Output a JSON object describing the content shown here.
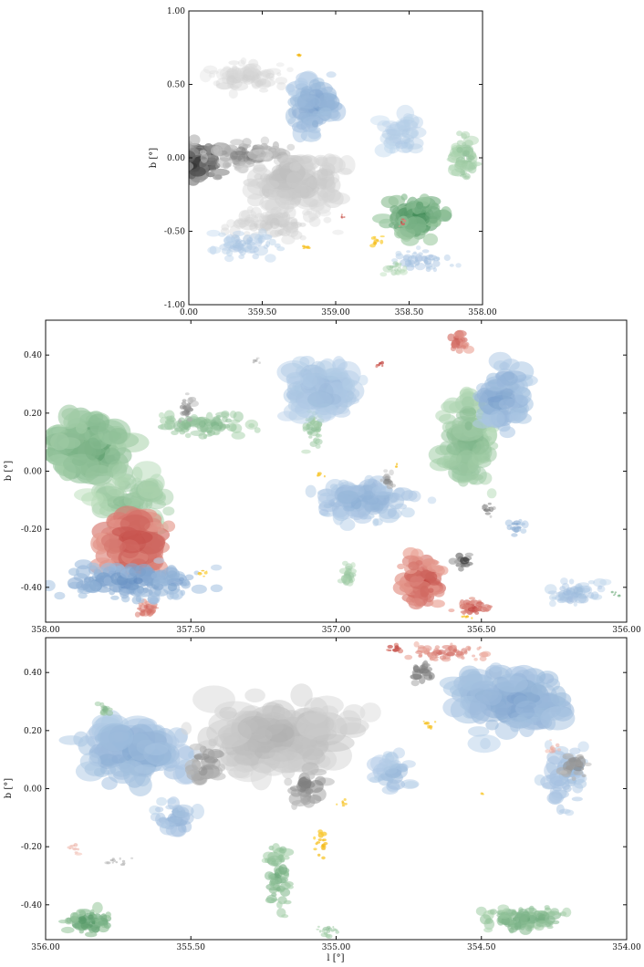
{
  "chart_data": [
    {
      "type": "heatmap",
      "panel": "top",
      "xlabel": "",
      "ylabel": "b [°]",
      "xlim": [
        0.0,
        358.0
      ],
      "ylim": [
        -1.0,
        1.0
      ],
      "x_ticks": [
        "0.00",
        "359.50",
        "359.00",
        "358.50",
        "358.00"
      ],
      "y_ticks": [
        "1.00",
        "0.50",
        "0.00",
        "-0.50",
        "-1.00"
      ],
      "colormaps": [
        "grey",
        "blue",
        "green",
        "red",
        "yellow"
      ],
      "regions": [
        {
          "cmap": "grey",
          "l": 359.95,
          "b": -0.03,
          "dl": 0.22,
          "db": 0.16,
          "intensity": 0.95,
          "n": 120
        },
        {
          "cmap": "grey",
          "l": 359.6,
          "b": 0.02,
          "dl": 0.35,
          "db": 0.12,
          "intensity": 0.55,
          "n": 90
        },
        {
          "cmap": "grey",
          "l": 359.3,
          "b": -0.15,
          "dl": 0.45,
          "db": 0.25,
          "intensity": 0.25,
          "n": 140
        },
        {
          "cmap": "grey",
          "l": 359.6,
          "b": 0.55,
          "dl": 0.35,
          "db": 0.15,
          "intensity": 0.15,
          "n": 70
        },
        {
          "cmap": "grey",
          "l": 359.4,
          "b": -0.45,
          "dl": 0.5,
          "db": 0.15,
          "intensity": 0.18,
          "n": 80
        },
        {
          "cmap": "blue",
          "l": 359.15,
          "b": 0.35,
          "dl": 0.2,
          "db": 0.25,
          "intensity": 0.45,
          "n": 90
        },
        {
          "cmap": "blue",
          "l": 359.6,
          "b": -0.6,
          "dl": 0.3,
          "db": 0.12,
          "intensity": 0.25,
          "n": 50
        },
        {
          "cmap": "blue",
          "l": 358.4,
          "b": -0.7,
          "dl": 0.3,
          "db": 0.1,
          "intensity": 0.3,
          "n": 40
        },
        {
          "cmap": "blue",
          "l": 358.55,
          "b": 0.15,
          "dl": 0.2,
          "db": 0.2,
          "intensity": 0.2,
          "n": 40
        },
        {
          "cmap": "green",
          "l": 358.45,
          "b": -0.4,
          "dl": 0.25,
          "db": 0.18,
          "intensity": 0.75,
          "n": 100
        },
        {
          "cmap": "green",
          "l": 358.12,
          "b": 0.0,
          "dl": 0.12,
          "db": 0.22,
          "intensity": 0.4,
          "n": 60
        },
        {
          "cmap": "green",
          "l": 358.6,
          "b": -0.75,
          "dl": 0.12,
          "db": 0.08,
          "intensity": 0.3,
          "n": 20
        },
        {
          "cmap": "red",
          "l": 358.55,
          "b": -0.44,
          "dl": 0.03,
          "db": 0.04,
          "intensity": 0.9,
          "n": 10
        },
        {
          "cmap": "red",
          "l": 358.95,
          "b": -0.4,
          "dl": 0.02,
          "db": 0.02,
          "intensity": 0.9,
          "n": 4
        },
        {
          "cmap": "yellow",
          "l": 358.72,
          "b": -0.57,
          "dl": 0.06,
          "db": 0.05,
          "intensity": 0.85,
          "n": 10
        },
        {
          "cmap": "yellow",
          "l": 359.2,
          "b": -0.6,
          "dl": 0.05,
          "db": 0.04,
          "intensity": 0.85,
          "n": 8
        },
        {
          "cmap": "yellow",
          "l": 359.25,
          "b": 0.7,
          "dl": 0.02,
          "db": 0.03,
          "intensity": 0.9,
          "n": 4
        }
      ]
    },
    {
      "type": "heatmap",
      "panel": "middle",
      "xlabel": "",
      "ylabel": "b [°]",
      "xlim": [
        358.0,
        356.0
      ],
      "ylim": [
        -0.52,
        0.52
      ],
      "x_ticks": [
        "358.00",
        "357.50",
        "357.00",
        "356.50",
        "356.00"
      ],
      "y_ticks": [
        "0.40",
        "0.20",
        "0.00",
        "-0.20",
        "-0.40"
      ],
      "regions": [
        {
          "cmap": "green",
          "l": 357.85,
          "b": 0.08,
          "dl": 0.18,
          "db": 0.15,
          "intensity": 0.6,
          "n": 140
        },
        {
          "cmap": "green",
          "l": 357.45,
          "b": 0.16,
          "dl": 0.25,
          "db": 0.06,
          "intensity": 0.45,
          "n": 90
        },
        {
          "cmap": "green",
          "l": 357.7,
          "b": -0.1,
          "dl": 0.18,
          "db": 0.12,
          "intensity": 0.4,
          "n": 70
        },
        {
          "cmap": "green",
          "l": 356.55,
          "b": 0.1,
          "dl": 0.12,
          "db": 0.22,
          "intensity": 0.45,
          "n": 120
        },
        {
          "cmap": "green",
          "l": 357.08,
          "b": 0.15,
          "dl": 0.05,
          "db": 0.1,
          "intensity": 0.4,
          "n": 40
        },
        {
          "cmap": "green",
          "l": 356.96,
          "b": -0.36,
          "dl": 0.05,
          "db": 0.06,
          "intensity": 0.35,
          "n": 25
        },
        {
          "cmap": "green",
          "l": 356.03,
          "b": -0.42,
          "dl": 0.03,
          "db": 0.02,
          "intensity": 0.8,
          "n": 6
        },
        {
          "cmap": "red",
          "l": 357.7,
          "b": -0.25,
          "dl": 0.14,
          "db": 0.15,
          "intensity": 0.75,
          "n": 150
        },
        {
          "cmap": "red",
          "l": 357.65,
          "b": -0.48,
          "dl": 0.06,
          "db": 0.04,
          "intensity": 0.65,
          "n": 40
        },
        {
          "cmap": "red",
          "l": 356.7,
          "b": -0.38,
          "dl": 0.09,
          "db": 0.12,
          "intensity": 0.75,
          "n": 110
        },
        {
          "cmap": "red",
          "l": 356.53,
          "b": -0.47,
          "dl": 0.08,
          "db": 0.04,
          "intensity": 0.75,
          "n": 50
        },
        {
          "cmap": "red",
          "l": 356.58,
          "b": 0.45,
          "dl": 0.05,
          "db": 0.05,
          "intensity": 0.7,
          "n": 30
        },
        {
          "cmap": "red",
          "l": 356.85,
          "b": 0.37,
          "dl": 0.02,
          "db": 0.02,
          "intensity": 0.95,
          "n": 6
        },
        {
          "cmap": "blue",
          "l": 357.7,
          "b": -0.38,
          "dl": 0.35,
          "db": 0.08,
          "intensity": 0.55,
          "n": 140
        },
        {
          "cmap": "blue",
          "l": 357.05,
          "b": 0.28,
          "dl": 0.18,
          "db": 0.14,
          "intensity": 0.3,
          "n": 100
        },
        {
          "cmap": "blue",
          "l": 356.9,
          "b": -0.1,
          "dl": 0.25,
          "db": 0.1,
          "intensity": 0.35,
          "n": 110
        },
        {
          "cmap": "blue",
          "l": 356.43,
          "b": 0.25,
          "dl": 0.12,
          "db": 0.15,
          "intensity": 0.45,
          "n": 80
        },
        {
          "cmap": "blue",
          "l": 356.18,
          "b": -0.42,
          "dl": 0.12,
          "db": 0.06,
          "intensity": 0.3,
          "n": 50
        },
        {
          "cmap": "blue",
          "l": 356.38,
          "b": -0.19,
          "dl": 0.04,
          "db": 0.04,
          "intensity": 0.5,
          "n": 15
        },
        {
          "cmap": "grey",
          "l": 357.52,
          "b": 0.21,
          "dl": 0.04,
          "db": 0.06,
          "intensity": 0.6,
          "n": 20
        },
        {
          "cmap": "grey",
          "l": 356.56,
          "b": -0.31,
          "dl": 0.04,
          "db": 0.04,
          "intensity": 0.85,
          "n": 18
        },
        {
          "cmap": "grey",
          "l": 356.48,
          "b": -0.13,
          "dl": 0.03,
          "db": 0.03,
          "intensity": 0.7,
          "n": 12
        },
        {
          "cmap": "grey",
          "l": 357.28,
          "b": 0.38,
          "dl": 0.03,
          "db": 0.02,
          "intensity": 0.4,
          "n": 8
        },
        {
          "cmap": "grey",
          "l": 356.82,
          "b": -0.03,
          "dl": 0.04,
          "db": 0.04,
          "intensity": 0.5,
          "n": 15
        },
        {
          "cmap": "yellow",
          "l": 357.46,
          "b": -0.35,
          "dl": 0.02,
          "db": 0.02,
          "intensity": 0.9,
          "n": 6
        },
        {
          "cmap": "yellow",
          "l": 357.05,
          "b": -0.01,
          "dl": 0.02,
          "db": 0.02,
          "intensity": 0.85,
          "n": 5
        },
        {
          "cmap": "yellow",
          "l": 356.55,
          "b": -0.5,
          "dl": 0.03,
          "db": 0.01,
          "intensity": 0.9,
          "n": 6
        },
        {
          "cmap": "yellow",
          "l": 356.79,
          "b": 0.02,
          "dl": 0.01,
          "db": 0.01,
          "intensity": 0.85,
          "n": 3
        }
      ]
    },
    {
      "type": "heatmap",
      "panel": "bottom",
      "xlabel": "l [°]",
      "ylabel": "b [°]",
      "xlim": [
        356.0,
        354.0
      ],
      "ylim": [
        -0.52,
        0.52
      ],
      "x_ticks": [
        "356.00",
        "355.50",
        "355.00",
        "354.50",
        "354.00"
      ],
      "y_ticks": [
        "0.40",
        "0.20",
        "0.00",
        "-0.20",
        "-0.40"
      ],
      "regions": [
        {
          "cmap": "blue",
          "l": 355.7,
          "b": 0.12,
          "dl": 0.25,
          "db": 0.15,
          "intensity": 0.4,
          "n": 130
        },
        {
          "cmap": "blue",
          "l": 354.4,
          "b": 0.3,
          "dl": 0.3,
          "db": 0.15,
          "intensity": 0.45,
          "n": 130
        },
        {
          "cmap": "blue",
          "l": 354.22,
          "b": 0.04,
          "dl": 0.1,
          "db": 0.15,
          "intensity": 0.35,
          "n": 50
        },
        {
          "cmap": "blue",
          "l": 355.55,
          "b": -0.1,
          "dl": 0.1,
          "db": 0.08,
          "intensity": 0.35,
          "n": 40
        },
        {
          "cmap": "blue",
          "l": 354.8,
          "b": 0.05,
          "dl": 0.1,
          "db": 0.1,
          "intensity": 0.3,
          "n": 35
        },
        {
          "cmap": "grey",
          "l": 355.2,
          "b": 0.18,
          "dl": 0.35,
          "db": 0.18,
          "intensity": 0.3,
          "n": 150
        },
        {
          "cmap": "grey",
          "l": 354.7,
          "b": 0.4,
          "dl": 0.05,
          "db": 0.05,
          "intensity": 0.8,
          "n": 20
        },
        {
          "cmap": "grey",
          "l": 354.18,
          "b": 0.08,
          "dl": 0.06,
          "db": 0.07,
          "intensity": 0.6,
          "n": 25
        },
        {
          "cmap": "grey",
          "l": 355.1,
          "b": 0.0,
          "dl": 0.08,
          "db": 0.08,
          "intensity": 0.6,
          "n": 30
        },
        {
          "cmap": "grey",
          "l": 355.45,
          "b": 0.08,
          "dl": 0.08,
          "db": 0.1,
          "intensity": 0.55,
          "n": 30
        },
        {
          "cmap": "grey",
          "l": 355.75,
          "b": -0.25,
          "dl": 0.08,
          "db": 0.02,
          "intensity": 0.5,
          "n": 12
        },
        {
          "cmap": "green",
          "l": 355.85,
          "b": -0.46,
          "dl": 0.12,
          "db": 0.06,
          "intensity": 0.7,
          "n": 60
        },
        {
          "cmap": "green",
          "l": 355.2,
          "b": -0.3,
          "dl": 0.06,
          "db": 0.16,
          "intensity": 0.55,
          "n": 60
        },
        {
          "cmap": "green",
          "l": 354.35,
          "b": -0.45,
          "dl": 0.2,
          "db": 0.06,
          "intensity": 0.55,
          "n": 110
        },
        {
          "cmap": "green",
          "l": 355.8,
          "b": 0.27,
          "dl": 0.05,
          "db": 0.04,
          "intensity": 0.45,
          "n": 15
        },
        {
          "cmap": "green",
          "l": 355.02,
          "b": -0.49,
          "dl": 0.06,
          "db": 0.03,
          "intensity": 0.45,
          "n": 18
        },
        {
          "cmap": "red",
          "l": 354.62,
          "b": 0.47,
          "dl": 0.18,
          "db": 0.04,
          "intensity": 0.55,
          "n": 60
        },
        {
          "cmap": "red",
          "l": 354.8,
          "b": 0.48,
          "dl": 0.04,
          "db": 0.03,
          "intensity": 0.9,
          "n": 12
        },
        {
          "cmap": "red",
          "l": 355.9,
          "b": -0.2,
          "dl": 0.03,
          "db": 0.03,
          "intensity": 0.35,
          "n": 8
        },
        {
          "cmap": "red",
          "l": 354.25,
          "b": 0.14,
          "dl": 0.03,
          "db": 0.03,
          "intensity": 0.35,
          "n": 8
        },
        {
          "cmap": "yellow",
          "l": 355.05,
          "b": -0.2,
          "dl": 0.03,
          "db": 0.07,
          "intensity": 0.9,
          "n": 18
        },
        {
          "cmap": "yellow",
          "l": 354.98,
          "b": -0.05,
          "dl": 0.02,
          "db": 0.02,
          "intensity": 0.85,
          "n": 6
        },
        {
          "cmap": "yellow",
          "l": 354.68,
          "b": 0.22,
          "dl": 0.03,
          "db": 0.02,
          "intensity": 0.85,
          "n": 8
        },
        {
          "cmap": "yellow",
          "l": 354.5,
          "b": -0.02,
          "dl": 0.01,
          "db": 0.01,
          "intensity": 0.85,
          "n": 3
        }
      ]
    }
  ]
}
